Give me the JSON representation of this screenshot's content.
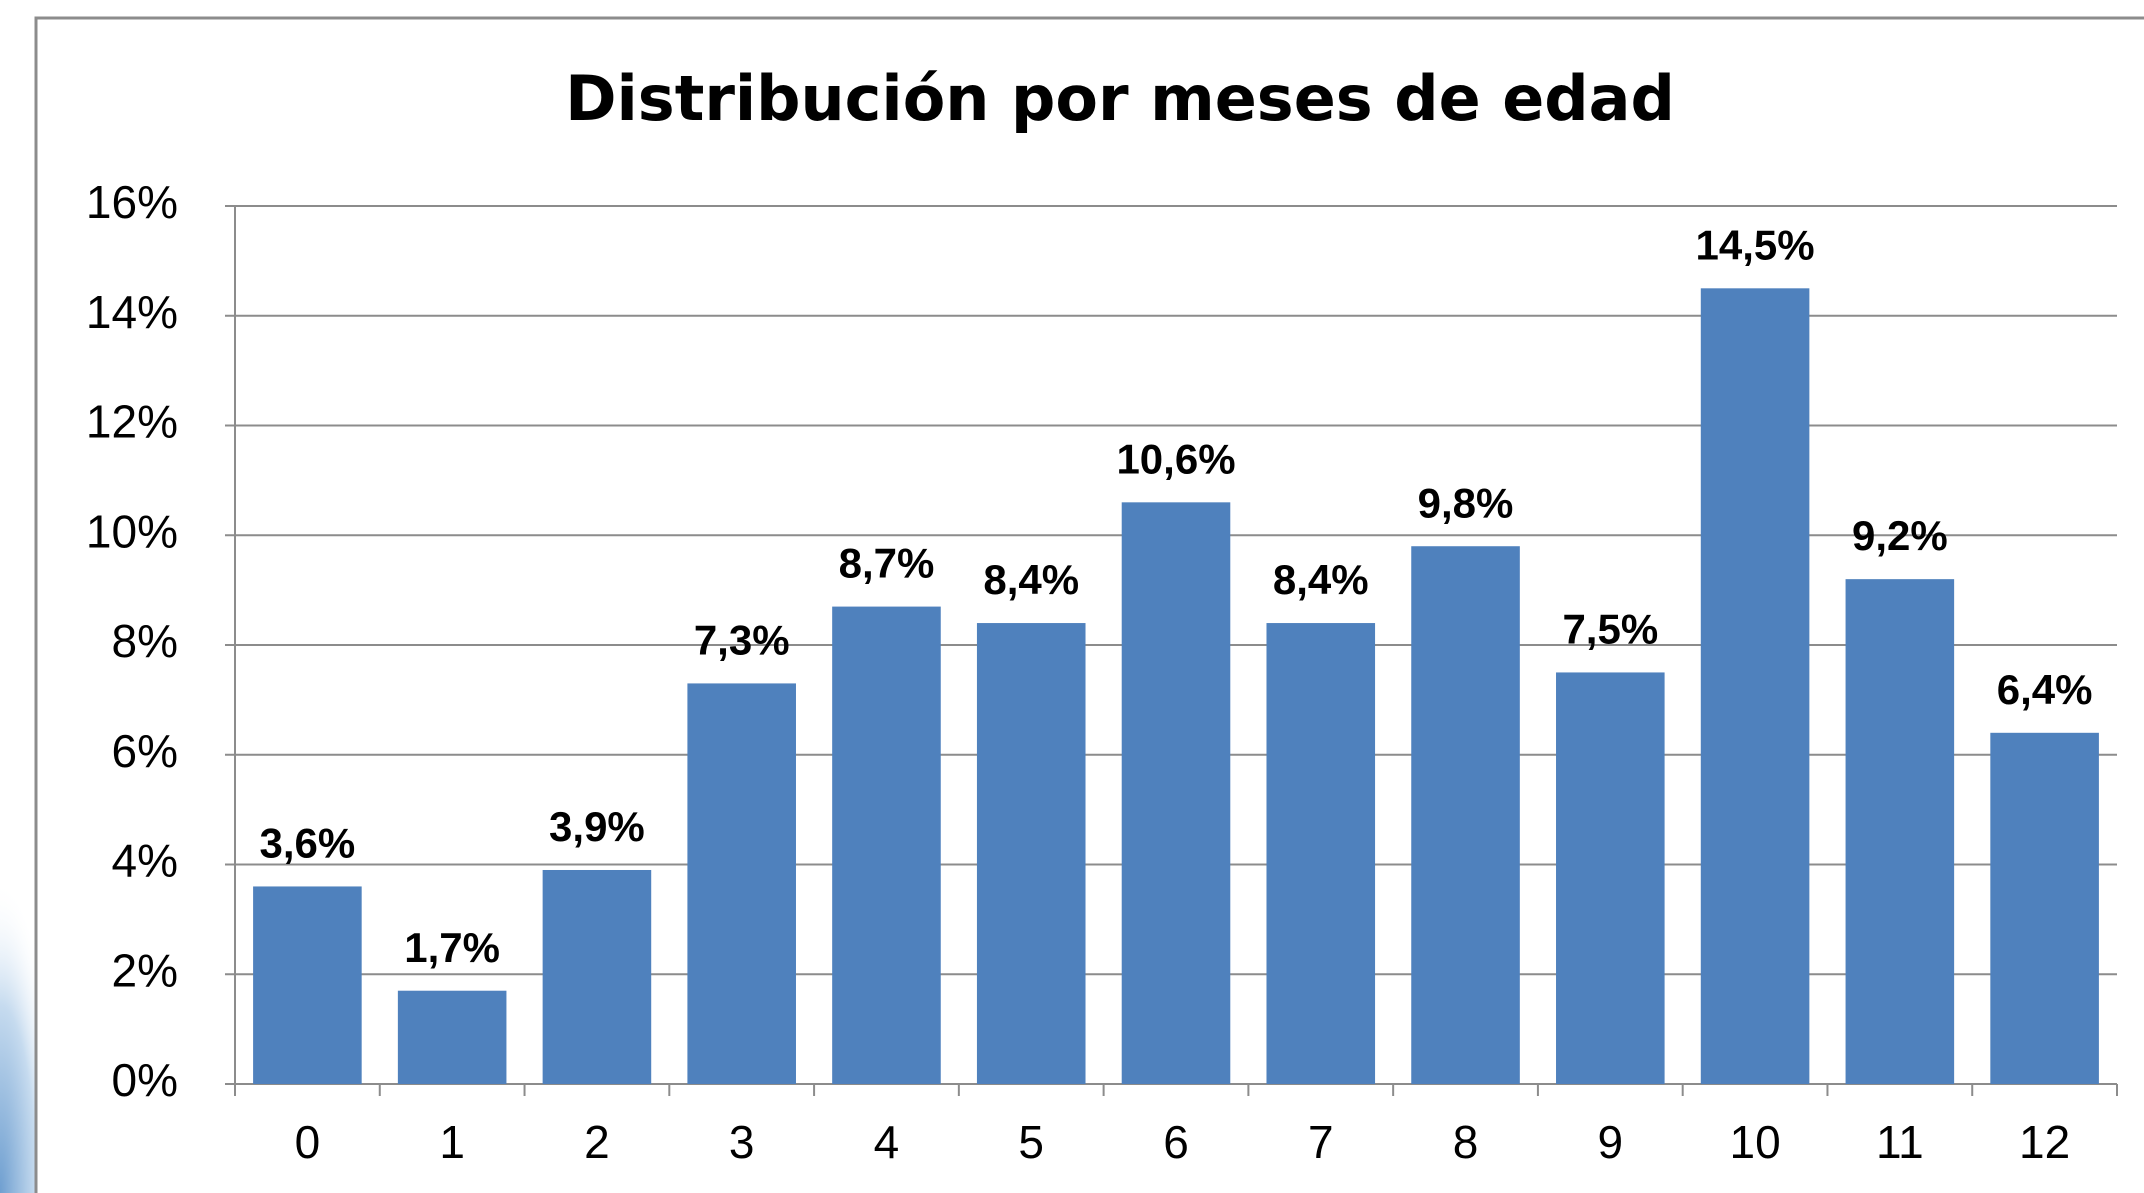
{
  "chart_data": {
    "type": "bar",
    "title": "Distribución por meses de edad",
    "categories": [
      "0",
      "1",
      "2",
      "3",
      "4",
      "5",
      "6",
      "7",
      "8",
      "9",
      "10",
      "11",
      "12"
    ],
    "values": [
      3.6,
      1.7,
      3.9,
      7.3,
      8.7,
      8.4,
      10.6,
      8.4,
      9.8,
      7.5,
      14.5,
      9.2,
      6.4
    ],
    "value_labels": [
      "3,6%",
      "1,7%",
      "3,9%",
      "7,3%",
      "8,7%",
      "8,4%",
      "10,6%",
      "8,4%",
      "9,8%",
      "7,5%",
      "14,5%",
      "9,2%",
      "6,4%"
    ],
    "color": "#4f81bd",
    "ylim": [
      0,
      16
    ],
    "yticks": [
      {
        "value": 0,
        "label": "0%"
      },
      {
        "value": 2,
        "label": "2%"
      },
      {
        "value": 4,
        "label": "4%"
      },
      {
        "value": 6,
        "label": "6%"
      },
      {
        "value": 8,
        "label": "8%"
      },
      {
        "value": 10,
        "label": "10%"
      },
      {
        "value": 12,
        "label": "12%"
      },
      {
        "value": 14,
        "label": "14%"
      },
      {
        "value": 16,
        "label": "16%"
      }
    ],
    "grid": true
  }
}
